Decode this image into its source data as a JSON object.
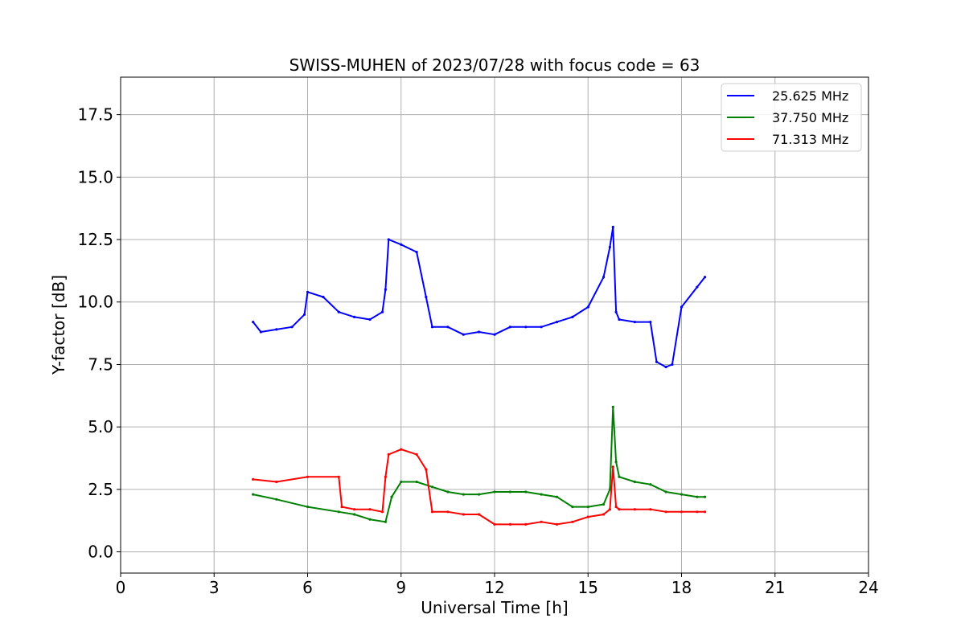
{
  "chart_data": {
    "type": "line",
    "title": "SWISS-MUHEN of 2023/07/28 with focus code = 63",
    "xlabel": "Universal Time [h]",
    "ylabel": "Y-factor [dB]",
    "xlim": [
      0,
      24
    ],
    "ylim": [
      -0.85,
      19.0
    ],
    "xticks": [
      0,
      3,
      6,
      9,
      12,
      15,
      18,
      21,
      24
    ],
    "xtick_labels": [
      "0",
      "3",
      "6",
      "9",
      "12",
      "15",
      "18",
      "21",
      "24"
    ],
    "yticks": [
      0.0,
      2.5,
      5.0,
      7.5,
      10.0,
      12.5,
      15.0,
      17.5
    ],
    "ytick_labels": [
      "0.0",
      "2.5",
      "5.0",
      "7.5",
      "10.0",
      "12.5",
      "15.0",
      "17.5"
    ],
    "grid": true,
    "legend_position": "top-right",
    "series": [
      {
        "name": "25.625 MHz",
        "color": "#0000ff",
        "x": [
          4.25,
          4.5,
          5.0,
          5.5,
          5.9,
          6.0,
          6.5,
          7.0,
          7.5,
          8.0,
          8.4,
          8.5,
          8.6,
          9.0,
          9.5,
          9.8,
          10.0,
          10.5,
          11.0,
          11.5,
          12.0,
          12.5,
          13.0,
          13.5,
          14.0,
          14.5,
          15.0,
          15.5,
          15.7,
          15.8,
          15.9,
          16.0,
          16.5,
          17.0,
          17.2,
          17.5,
          17.7,
          18.0,
          18.5,
          18.75
        ],
        "y": [
          9.2,
          8.8,
          8.9,
          9.0,
          9.5,
          10.4,
          10.2,
          9.6,
          9.4,
          9.3,
          9.6,
          10.5,
          12.5,
          12.3,
          12.0,
          10.2,
          9.0,
          9.0,
          8.7,
          8.8,
          8.7,
          9.0,
          9.0,
          9.0,
          9.2,
          9.4,
          9.8,
          11.0,
          12.2,
          13.0,
          9.6,
          9.3,
          9.2,
          9.2,
          7.6,
          7.4,
          7.5,
          9.8,
          10.6,
          11.0
        ]
      },
      {
        "name": "37.750 MHz",
        "color": "#008000",
        "x": [
          4.25,
          5.0,
          6.0,
          7.0,
          7.5,
          8.0,
          8.5,
          8.7,
          9.0,
          9.5,
          10.0,
          10.5,
          11.0,
          11.5,
          12.0,
          12.5,
          13.0,
          13.5,
          14.0,
          14.5,
          15.0,
          15.5,
          15.7,
          15.8,
          15.9,
          16.0,
          16.5,
          17.0,
          17.5,
          18.0,
          18.5,
          18.75
        ],
        "y": [
          2.3,
          2.1,
          1.8,
          1.6,
          1.5,
          1.3,
          1.2,
          2.2,
          2.8,
          2.8,
          2.6,
          2.4,
          2.3,
          2.3,
          2.4,
          2.4,
          2.4,
          2.3,
          2.2,
          1.8,
          1.8,
          1.9,
          2.5,
          5.8,
          3.6,
          3.0,
          2.8,
          2.7,
          2.4,
          2.3,
          2.2,
          2.2
        ]
      },
      {
        "name": "71.313 MHz",
        "color": "#ff0000",
        "x": [
          4.25,
          5.0,
          6.0,
          7.0,
          7.1,
          7.5,
          8.0,
          8.4,
          8.5,
          8.6,
          9.0,
          9.5,
          9.8,
          10.0,
          10.5,
          11.0,
          11.5,
          12.0,
          12.5,
          13.0,
          13.5,
          14.0,
          14.5,
          15.0,
          15.5,
          15.7,
          15.8,
          15.9,
          16.0,
          16.5,
          17.0,
          17.5,
          18.0,
          18.5,
          18.75
        ],
        "y": [
          2.9,
          2.8,
          3.0,
          3.0,
          1.8,
          1.7,
          1.7,
          1.6,
          3.0,
          3.9,
          4.1,
          3.9,
          3.3,
          1.6,
          1.6,
          1.5,
          1.5,
          1.1,
          1.1,
          1.1,
          1.2,
          1.1,
          1.2,
          1.4,
          1.5,
          1.7,
          3.4,
          1.8,
          1.7,
          1.7,
          1.7,
          1.6,
          1.6,
          1.6,
          1.6
        ]
      }
    ]
  }
}
